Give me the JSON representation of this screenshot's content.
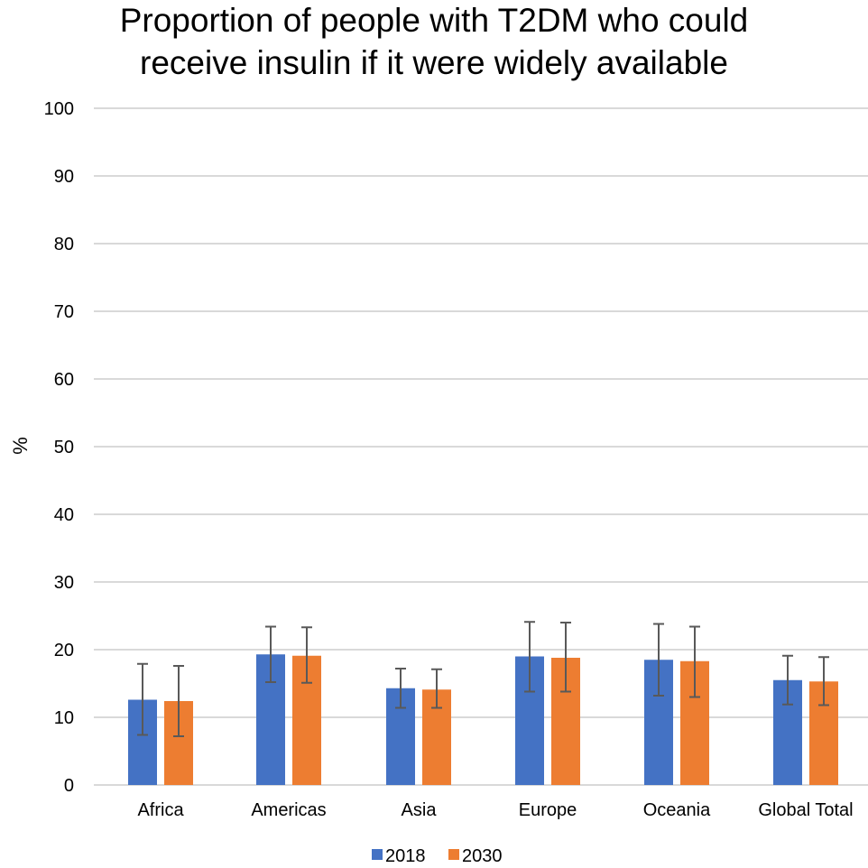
{
  "chart_data": {
    "type": "bar",
    "title": [
      "Proportion of people with T2DM who could",
      "receive insulin if it were widely available"
    ],
    "xlabel": "",
    "ylabel": "%",
    "ylim": [
      0,
      100
    ],
    "yticks": [
      "0",
      "10",
      "20",
      "30",
      "40",
      "50",
      "60",
      "70",
      "80",
      "90",
      "100"
    ],
    "grid": true,
    "legend_position": "bottom",
    "categories": [
      "Africa",
      "Americas",
      "Asia",
      "Europe",
      "Oceania",
      "Global Total"
    ],
    "series": [
      {
        "name": "2018",
        "color": "#4472c4",
        "values": [
          12.6,
          19.3,
          14.3,
          19.0,
          18.5,
          15.5
        ],
        "error_low": [
          7.4,
          15.2,
          11.4,
          13.8,
          13.2,
          11.9
        ],
        "error_high": [
          17.9,
          23.4,
          17.2,
          24.1,
          23.8,
          19.1
        ]
      },
      {
        "name": "2030",
        "color": "#ed7d31",
        "values": [
          12.4,
          19.1,
          14.1,
          18.8,
          18.3,
          15.3
        ],
        "error_low": [
          7.2,
          15.1,
          11.4,
          13.8,
          13.0,
          11.8
        ],
        "error_high": [
          17.6,
          23.3,
          17.1,
          24.0,
          23.4,
          18.9
        ]
      }
    ]
  }
}
